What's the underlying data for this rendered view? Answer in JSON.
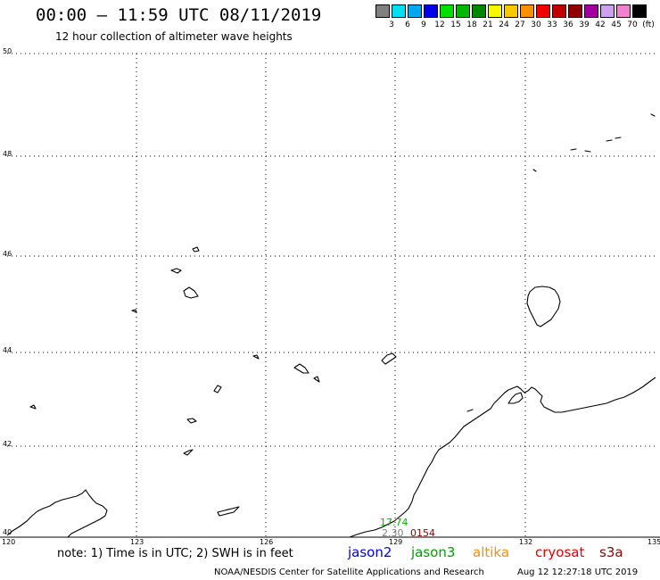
{
  "header": {
    "title": "00:00 — 11:59 UTC 08/11/2019",
    "subtitle": "12 hour collection of altimeter wave heights"
  },
  "color_scale": {
    "labels": [
      "3",
      "6",
      "9",
      "12",
      "15",
      "18",
      "21",
      "24",
      "27",
      "30",
      "33",
      "36",
      "39",
      "42",
      "45",
      "70",
      "(ft)"
    ],
    "colors": [
      "#808080",
      "#00e0f0",
      "#00a8f0",
      "#0000e8",
      "#00e000",
      "#00b800",
      "#008800",
      "#f8f800",
      "#f8c800",
      "#f89000",
      "#f00000",
      "#c00000",
      "#900000",
      "#a000a0",
      "#d0a0f0",
      "#f080d0",
      "#000000"
    ]
  },
  "map": {
    "lat_labels": [
      "50",
      "48",
      "46",
      "44",
      "42",
      "40"
    ],
    "lon_labels": [
      "120",
      "123",
      "126",
      "129",
      "132",
      "135"
    ],
    "grid_style": "dotted"
  },
  "observations": [
    {
      "text": "17.74",
      "color": "#00b800"
    },
    {
      "text": "2.30",
      "color": "#808080"
    },
    {
      "text": "0154",
      "color": "#900000"
    }
  ],
  "footer": {
    "note": "note: 1) Time is in UTC; 2) SWH is in feet",
    "satellites": [
      {
        "name": "jason2",
        "color": "#0000e8"
      },
      {
        "name": "jason3",
        "color": "#00a000"
      },
      {
        "name": "altika",
        "color": "#f89000"
      },
      {
        "name": "cryosat",
        "color": "#e00000"
      },
      {
        "name": "s3a",
        "color": "#900000"
      }
    ],
    "credit": "NOAA/NESDIS Center for Satellite Applications and Research",
    "timestamp": "Aug 12 12:27:18 UTC 2019"
  }
}
